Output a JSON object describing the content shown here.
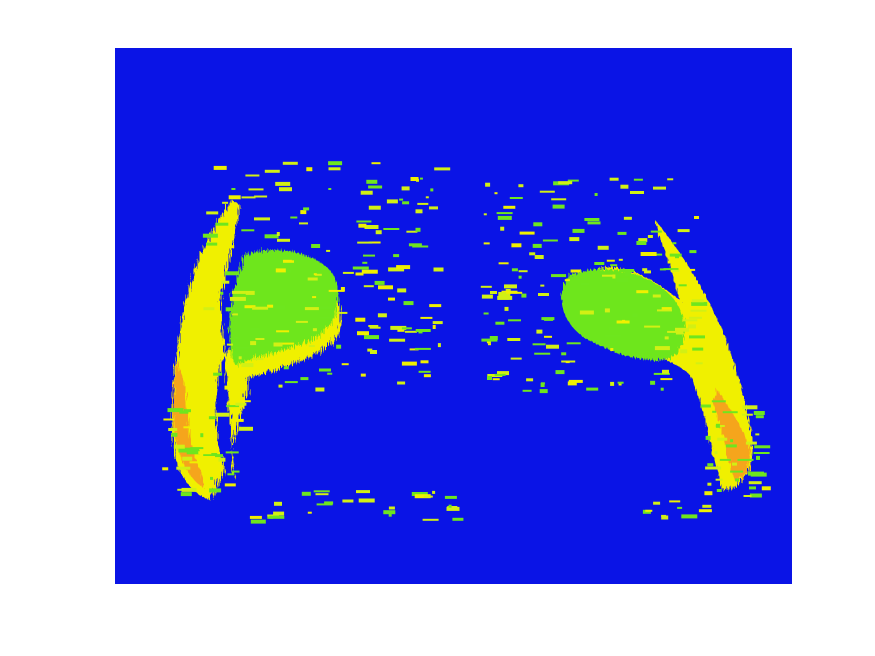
{
  "figure": {
    "background": "#ffffff"
  },
  "chart_data": {
    "type": "heatmap",
    "title": "",
    "xlabel": "",
    "ylabel": "",
    "axes_visible": false,
    "colorbar": false,
    "colormap": "jet",
    "background_color": "#0a14e6",
    "grid": false,
    "description_of_values": "",
    "regions": [
      {
        "value_level": "low",
        "color": "#0a14e6"
      },
      {
        "value_level": "mid",
        "color": "#6ee61e"
      },
      {
        "value_level": "mid-high",
        "color": "#d2f014"
      },
      {
        "value_level": "high",
        "color": "#f0f000"
      },
      {
        "value_level": "very-high",
        "color": "#f5a51e"
      }
    ]
  }
}
